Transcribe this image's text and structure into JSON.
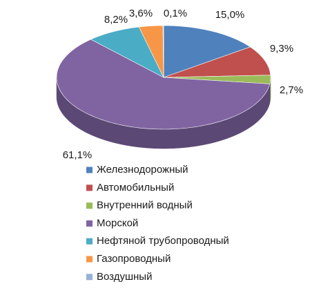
{
  "chart_data": {
    "type": "pie3d",
    "categories": [
      "Железнодорожный",
      "Автомобильный",
      "Внутренний водный",
      "Морской",
      "Нефтяной трубопроводный",
      "Газопроводный",
      "Воздушный"
    ],
    "values": [
      15.0,
      9.3,
      2.7,
      61.1,
      8.2,
      3.6,
      0.1
    ],
    "value_labels": [
      "15,0%",
      "9,3%",
      "2,7%",
      "61,1%",
      "8,2%",
      "3,6%",
      "0,1%"
    ],
    "colors": [
      "#4f81bd",
      "#c0504d",
      "#9bbb59",
      "#8064a2",
      "#4bacc6",
      "#f79646",
      "#95b3d7"
    ],
    "legend": "bottom"
  }
}
